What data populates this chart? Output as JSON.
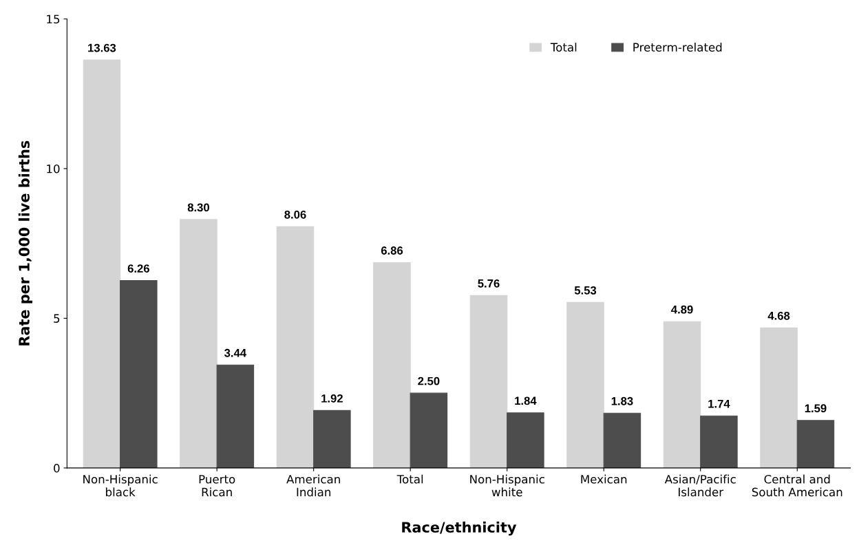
{
  "chart_data": {
    "type": "bar",
    "xlabel": "Race/ethnicity",
    "ylabel": "Rate per 1,000 live births",
    "categories": [
      "Non-Hispanic\nblack",
      "Puerto\nRican",
      "American\nIndian",
      "Total",
      "Non-Hispanic\nwhite",
      "Mexican",
      "Asian/Pacific\nIslander",
      "Central and\nSouth American"
    ],
    "series": [
      {
        "name": "Total",
        "color": "#d4d4d4",
        "values": [
          13.63,
          8.3,
          8.06,
          6.86,
          5.76,
          5.53,
          4.89,
          4.68
        ],
        "value_labels": [
          "13.63",
          "8.30",
          "8.06",
          "6.86",
          "5.76",
          "5.53",
          "4.89",
          "4.68"
        ]
      },
      {
        "name": "Preterm-related",
        "color": "#4d4d4d",
        "values": [
          6.26,
          3.44,
          1.92,
          2.5,
          1.84,
          1.83,
          1.74,
          1.59
        ],
        "value_labels": [
          "6.26",
          "3.44",
          "1.92",
          "2.50",
          "1.84",
          "1.83",
          "1.74",
          "1.59"
        ]
      }
    ],
    "ylim": [
      0,
      15
    ],
    "yticks": [
      0,
      5,
      10,
      15
    ],
    "grid": false,
    "legend": "top right"
  }
}
